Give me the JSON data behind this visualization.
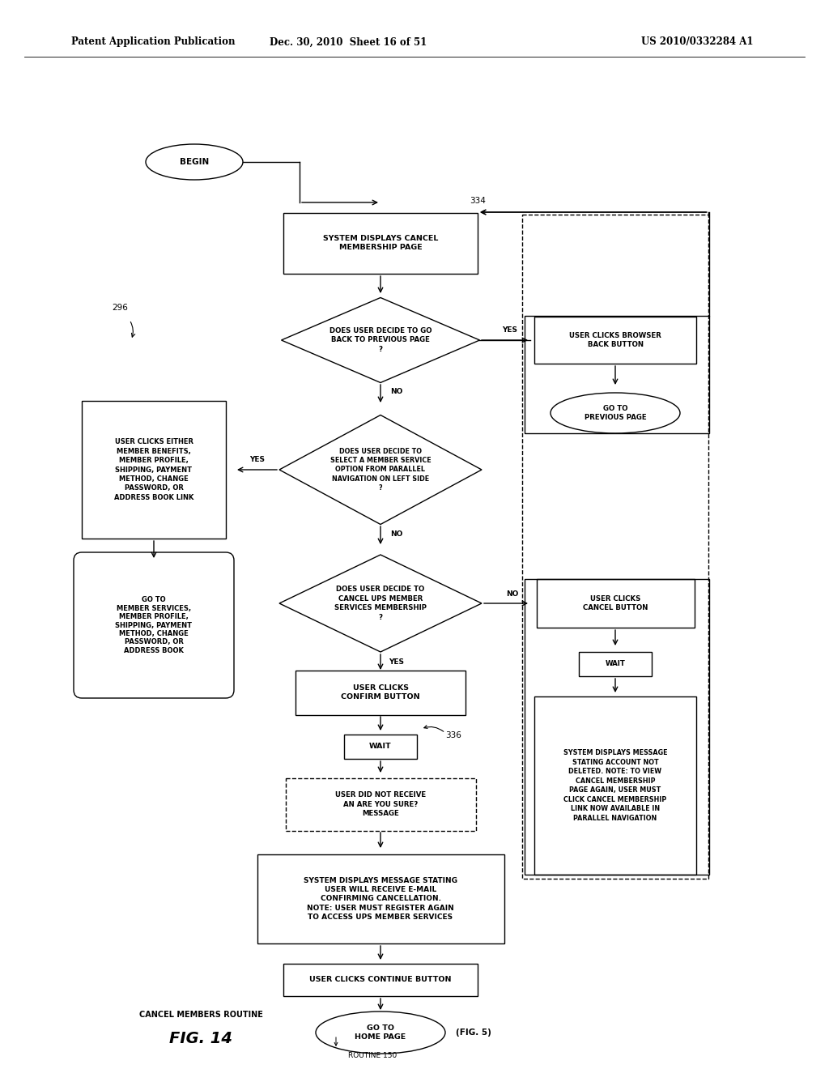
{
  "header_left": "Patent Application Publication",
  "header_mid": "Dec. 30, 2010  Sheet 16 of 51",
  "header_right": "US 2010/0332284 A1",
  "bg_color": "#ffffff"
}
